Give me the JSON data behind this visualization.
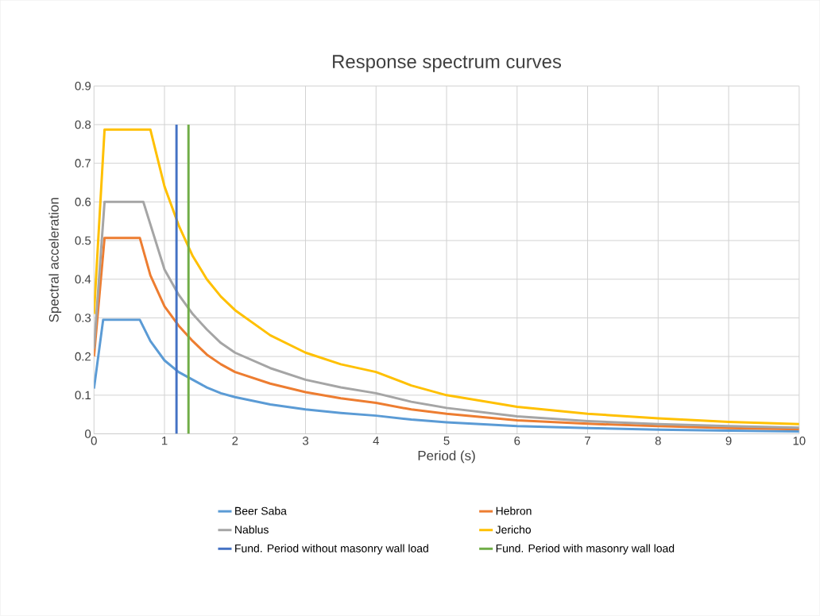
{
  "chart_data": {
    "type": "line",
    "title": "Response spectrum curves",
    "xlabel": "Period (s)",
    "ylabel": "Spectral acceleration",
    "xlim": [
      0,
      10
    ],
    "xticks": [
      0,
      1,
      2,
      3,
      4,
      5,
      6,
      7,
      8,
      9,
      10
    ],
    "ylim": [
      0,
      0.9
    ],
    "yticks": [
      0,
      0.1,
      0.2,
      0.3,
      0.4,
      0.5,
      0.6,
      0.7,
      0.8,
      0.9
    ],
    "grid": true,
    "legend": "bottom",
    "marker": "none",
    "line_style": "solid",
    "series": [
      {
        "name": "Beer Saba",
        "color": "#5b9bd5",
        "x": [
          0,
          0.13,
          0.65,
          0.8,
          1,
          1.2,
          1.4,
          1.6,
          1.8,
          2,
          2.5,
          3,
          3.5,
          4,
          4.5,
          5,
          6,
          7,
          8,
          9,
          10
        ],
        "values": [
          0.117,
          0.295,
          0.295,
          0.24,
          0.19,
          0.16,
          0.14,
          0.12,
          0.105,
          0.095,
          0.076,
          0.063,
          0.054,
          0.047,
          0.037,
          0.03,
          0.02,
          0.015,
          0.011,
          0.008,
          0.006
        ]
      },
      {
        "name": "Hebron",
        "color": "#ed7d31",
        "x": [
          0,
          0.15,
          0.65,
          0.8,
          1,
          1.2,
          1.4,
          1.6,
          1.8,
          2,
          2.5,
          3,
          3.5,
          4,
          4.5,
          5,
          6,
          7,
          8,
          9,
          10
        ],
        "values": [
          0.2,
          0.507,
          0.507,
          0.41,
          0.33,
          0.28,
          0.24,
          0.205,
          0.18,
          0.16,
          0.13,
          0.108,
          0.092,
          0.08,
          0.063,
          0.052,
          0.035,
          0.026,
          0.02,
          0.015,
          0.012
        ]
      },
      {
        "name": "Nablus",
        "color": "#a5a5a5",
        "x": [
          0,
          0.15,
          0.7,
          1,
          1.2,
          1.4,
          1.6,
          1.8,
          2,
          2.5,
          3,
          3.5,
          4,
          4.5,
          5,
          6,
          7,
          8,
          9,
          10
        ],
        "values": [
          0.22,
          0.6,
          0.6,
          0.425,
          0.36,
          0.31,
          0.27,
          0.235,
          0.21,
          0.17,
          0.14,
          0.12,
          0.105,
          0.083,
          0.067,
          0.045,
          0.033,
          0.025,
          0.02,
          0.016
        ]
      },
      {
        "name": "Jericho",
        "color": "#ffc000",
        "x": [
          0,
          0.15,
          0.8,
          1,
          1.2,
          1.4,
          1.6,
          1.8,
          2,
          2.5,
          3,
          3.5,
          4,
          4.5,
          5,
          6,
          7,
          8,
          9,
          10
        ],
        "values": [
          0.31,
          0.787,
          0.787,
          0.64,
          0.54,
          0.46,
          0.4,
          0.355,
          0.32,
          0.255,
          0.21,
          0.18,
          0.16,
          0.125,
          0.1,
          0.07,
          0.052,
          0.04,
          0.031,
          0.025
        ]
      },
      {
        "name": "Fund. Period without masonry wall load",
        "color": "#4472c4",
        "x": [
          1.17,
          1.17
        ],
        "values": [
          0,
          0.8
        ]
      },
      {
        "name": "Fund. Period with masonry wall load",
        "color": "#70ad47",
        "x": [
          1.34,
          1.34
        ],
        "values": [
          0,
          0.8
        ]
      }
    ]
  }
}
